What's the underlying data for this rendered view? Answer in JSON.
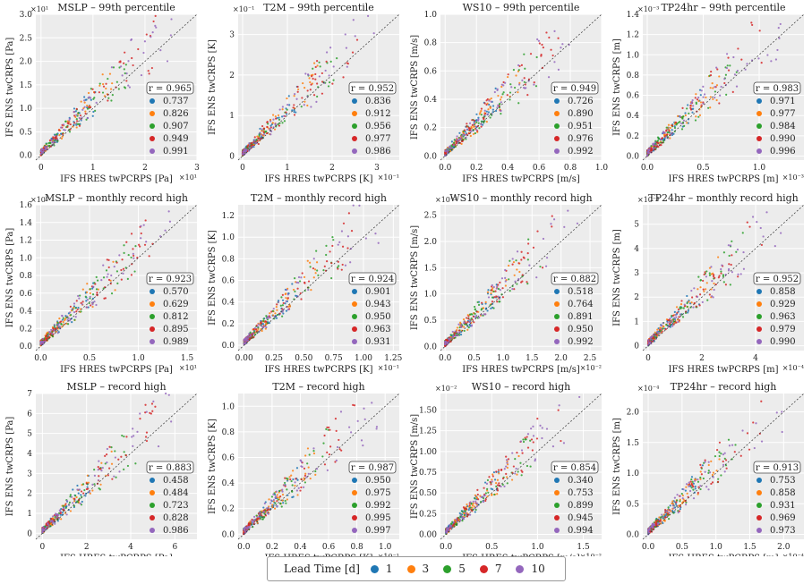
{
  "colors": {
    "lead": [
      "#1f77b4",
      "#ff7f0e",
      "#2ca02c",
      "#d62728",
      "#9467bd"
    ],
    "plot_bg": "#ececec",
    "grid": "#ffffff",
    "diagonal": "#333333"
  },
  "legend": {
    "title": "Lead Time [d]",
    "items": [
      "1",
      "3",
      "5",
      "7",
      "10"
    ]
  },
  "chart_data": [
    {
      "type": "scatter",
      "title": "MSLP – 99th percentile",
      "xlabel": "IFS HRES twPCRPS [Pa]",
      "ylabel": "IFS ENS twCRPS [Pa]",
      "x_exp": "×10¹",
      "y_exp": "×10¹",
      "xlim": [
        -0.1,
        3
      ],
      "ylim": [
        -0.1,
        3
      ],
      "xticks": [
        "0",
        "1",
        "2",
        "3"
      ],
      "yticks": [
        "0.0",
        "0.5",
        "1.0",
        "1.5",
        "2.0",
        "2.5",
        "3.0"
      ],
      "xtick_vals": [
        0,
        1,
        2,
        3
      ],
      "ytick_vals": [
        0,
        0.5,
        1,
        1.5,
        2,
        2.5,
        3
      ],
      "r": "0.965",
      "r_series": [
        "0.737",
        "0.826",
        "0.907",
        "0.949",
        "0.991"
      ]
    },
    {
      "type": "scatter",
      "title": "T2M – 99th percentile",
      "xlabel": "IFS HRES twPCRPS [K]",
      "ylabel": "IFS ENS twCRPS [K]",
      "x_exp": "×10⁻¹",
      "y_exp": "×10⁻¹",
      "xlim": [
        -0.1,
        3.5
      ],
      "ylim": [
        -0.1,
        3.5
      ],
      "xticks": [
        "0",
        "1",
        "2",
        "3"
      ],
      "yticks": [
        "0",
        "1",
        "2",
        "3"
      ],
      "xtick_vals": [
        0,
        1,
        2,
        3
      ],
      "ytick_vals": [
        0,
        1,
        2,
        3
      ],
      "r": "0.952",
      "r_series": [
        "0.836",
        "0.912",
        "0.956",
        "0.977",
        "0.986"
      ]
    },
    {
      "type": "scatter",
      "title": "WS10 – 99th percentile",
      "xlabel": "IFS HRES twPCRPS [m/s]",
      "ylabel": "IFS ENS twCRPS [m/s]",
      "x_exp": "",
      "y_exp": "",
      "xlim": [
        -0.03,
        1
      ],
      "ylim": [
        -0.03,
        1
      ],
      "xticks": [
        "0.0",
        "0.2",
        "0.4",
        "0.6",
        "0.8",
        "1.0"
      ],
      "yticks": [
        "0.0",
        "0.2",
        "0.4",
        "0.6",
        "0.8",
        "1.0"
      ],
      "xtick_vals": [
        0,
        0.2,
        0.4,
        0.6,
        0.8,
        1
      ],
      "ytick_vals": [
        0,
        0.2,
        0.4,
        0.6,
        0.8,
        1
      ],
      "r": "0.949",
      "r_series": [
        "0.726",
        "0.890",
        "0.951",
        "0.976",
        "0.992"
      ]
    },
    {
      "type": "scatter",
      "title": "TP24hr – 99th percentile",
      "xlabel": "IFS HRES twPCRPS [m]",
      "ylabel": "IFS ENS twCRPS [m]",
      "x_exp": "×10⁻³",
      "y_exp": "×10⁻³",
      "xlim": [
        -0.04,
        1.4
      ],
      "ylim": [
        -0.04,
        1.4
      ],
      "xticks": [
        "0.0",
        "0.5",
        "1.0"
      ],
      "yticks": [
        "0.0",
        "0.2",
        "0.4",
        "0.6",
        "0.8",
        "1.0",
        "1.2",
        "1.4"
      ],
      "xtick_vals": [
        0,
        0.5,
        1
      ],
      "ytick_vals": [
        0,
        0.2,
        0.4,
        0.6,
        0.8,
        1,
        1.2,
        1.4
      ],
      "r": "0.983",
      "r_series": [
        "0.971",
        "0.977",
        "0.984",
        "0.990",
        "0.996"
      ]
    },
    {
      "type": "scatter",
      "title": "MSLP – monthly record high",
      "xlabel": "IFS HRES twPCRPS [Pa]",
      "ylabel": "IFS ENS twCRPS [Pa]",
      "x_exp": "×10¹",
      "y_exp": "×10¹",
      "xlim": [
        -0.05,
        1.6
      ],
      "ylim": [
        -0.05,
        1.6
      ],
      "xticks": [
        "0.0",
        "0.5",
        "1.0",
        "1.5"
      ],
      "yticks": [
        "0.0",
        "0.2",
        "0.4",
        "0.6",
        "0.8",
        "1.0",
        "1.2",
        "1.4",
        "1.6"
      ],
      "xtick_vals": [
        0,
        0.5,
        1,
        1.5
      ],
      "ytick_vals": [
        0,
        0.2,
        0.4,
        0.6,
        0.8,
        1,
        1.2,
        1.4,
        1.6
      ],
      "r": "0.923",
      "r_series": [
        "0.570",
        "0.629",
        "0.812",
        "0.895",
        "0.989"
      ]
    },
    {
      "type": "scatter",
      "title": "T2M – monthly record high",
      "xlabel": "IFS HRES twPCRPS [K]",
      "ylabel": "IFS ENS twCRPS [K]",
      "x_exp": "×10⁻¹",
      "y_exp": "",
      "xlim": [
        -0.05,
        1.3
      ],
      "ylim": [
        -0.05,
        1.3
      ],
      "xticks": [
        "0.00",
        "0.25",
        "0.50",
        "0.75",
        "1.00",
        "1.25"
      ],
      "yticks": [
        "0.0",
        "0.2",
        "0.4",
        "0.6",
        "0.8",
        "1.0",
        "1.2"
      ],
      "xtick_vals": [
        0,
        0.25,
        0.5,
        0.75,
        1,
        1.25
      ],
      "ytick_vals": [
        0,
        0.2,
        0.4,
        0.6,
        0.8,
        1,
        1.2
      ],
      "r": "0.924",
      "r_series": [
        "0.901",
        "0.943",
        "0.950",
        "0.963",
        "0.931"
      ]
    },
    {
      "type": "scatter",
      "title": "WS10 – monthly record high",
      "xlabel": "IFS HRES twPCRPS [m/s]",
      "ylabel": "IFS ENS twCRPS [m/s]",
      "x_exp": "×10⁻²",
      "y_exp": "×10⁻²",
      "xlim": [
        -0.08,
        2.7
      ],
      "ylim": [
        -0.08,
        2.7
      ],
      "xticks": [
        "0.0",
        "0.5",
        "1.0",
        "1.5",
        "2.0",
        "2.5"
      ],
      "yticks": [
        "0.0",
        "0.5",
        "1.0",
        "1.5",
        "2.0",
        "2.5"
      ],
      "xtick_vals": [
        0,
        0.5,
        1,
        1.5,
        2,
        2.5
      ],
      "ytick_vals": [
        0,
        0.5,
        1,
        1.5,
        2,
        2.5
      ],
      "r": "0.882",
      "r_series": [
        "0.518",
        "0.764",
        "0.891",
        "0.950",
        "0.992"
      ]
    },
    {
      "type": "scatter",
      "title": "TP24hr – monthly record high",
      "xlabel": "IFS HRES twPCRPS [m]",
      "ylabel": "IFS ENS twCRPS [m]",
      "x_exp": "×10⁻⁴",
      "y_exp": "×10⁻⁴",
      "xlim": [
        -0.2,
        5.8
      ],
      "ylim": [
        -0.2,
        5.8
      ],
      "xticks": [
        "0",
        "2",
        "4"
      ],
      "yticks": [
        "0",
        "1",
        "2",
        "3",
        "4",
        "5"
      ],
      "xtick_vals": [
        0,
        2,
        4
      ],
      "ytick_vals": [
        0,
        1,
        2,
        3,
        4,
        5
      ],
      "r": "0.952",
      "r_series": [
        "0.858",
        "0.929",
        "0.963",
        "0.979",
        "0.990"
      ]
    },
    {
      "type": "scatter",
      "title": "MSLP – record high",
      "xlabel": "IFS HRES twPCRPS [Pa]",
      "ylabel": "IFS ENS twCRPS [Pa]",
      "x_exp": "",
      "y_exp": "",
      "xlim": [
        -0.3,
        7
      ],
      "ylim": [
        -0.3,
        7
      ],
      "xticks": [
        "0",
        "2",
        "4",
        "6"
      ],
      "yticks": [
        "0",
        "1",
        "2",
        "3",
        "4",
        "5",
        "6",
        "7"
      ],
      "xtick_vals": [
        0,
        2,
        4,
        6
      ],
      "ytick_vals": [
        0,
        1,
        2,
        3,
        4,
        5,
        6,
        7
      ],
      "r": "0.883",
      "r_series": [
        "0.458",
        "0.484",
        "0.723",
        "0.828",
        "0.986"
      ]
    },
    {
      "type": "scatter",
      "title": "T2M – record high",
      "xlabel": "IFS HRES twPCRPS [K]",
      "ylabel": "IFS ENS twCRPS [K]",
      "x_exp": "×10⁻¹",
      "y_exp": "",
      "xlim": [
        -0.04,
        1.1
      ],
      "ylim": [
        -0.04,
        1.1
      ],
      "xticks": [
        "0.0",
        "0.2",
        "0.4",
        "0.6",
        "0.8",
        "1.0"
      ],
      "yticks": [
        "0.0",
        "0.2",
        "0.4",
        "0.6",
        "0.8",
        "1.0"
      ],
      "xtick_vals": [
        0,
        0.2,
        0.4,
        0.6,
        0.8,
        1
      ],
      "ytick_vals": [
        0,
        0.2,
        0.4,
        0.6,
        0.8,
        1
      ],
      "r": "0.987",
      "r_series": [
        "0.950",
        "0.975",
        "0.992",
        "0.995",
        "0.997"
      ]
    },
    {
      "type": "scatter",
      "title": "WS10 – record high",
      "xlabel": "IFS HRES twPCRPS [m/s]",
      "ylabel": "IFS ENS twCRPS [m/s]",
      "x_exp": "×10⁻²",
      "y_exp": "×10⁻²",
      "xlim": [
        -0.06,
        1.7
      ],
      "ylim": [
        -0.06,
        1.7
      ],
      "xticks": [
        "0.0",
        "0.5",
        "1.0",
        "1.5"
      ],
      "yticks": [
        "0.00",
        "0.25",
        "0.50",
        "0.75",
        "1.00",
        "1.25",
        "1.50"
      ],
      "xtick_vals": [
        0,
        0.5,
        1,
        1.5
      ],
      "ytick_vals": [
        0,
        0.25,
        0.5,
        0.75,
        1,
        1.25,
        1.5
      ],
      "r": "0.854",
      "r_series": [
        "0.340",
        "0.753",
        "0.899",
        "0.945",
        "0.994"
      ]
    },
    {
      "type": "scatter",
      "title": "TP24hr – record high",
      "xlabel": "IFS HRES twPCRPS [m]",
      "ylabel": "IFS ENS twCRPS [m]",
      "x_exp": "×10⁻⁴",
      "y_exp": "×10⁻⁴",
      "xlim": [
        -0.08,
        2.3
      ],
      "ylim": [
        -0.08,
        2.3
      ],
      "xticks": [
        "0.0",
        "0.5",
        "1.0",
        "1.5",
        "2.0"
      ],
      "yticks": [
        "0.0",
        "0.5",
        "1.0",
        "1.5",
        "2.0"
      ],
      "xtick_vals": [
        0,
        0.5,
        1,
        1.5,
        2
      ],
      "ytick_vals": [
        0,
        0.5,
        1,
        1.5,
        2
      ],
      "r": "0.913",
      "r_series": [
        "0.753",
        "0.858",
        "0.931",
        "0.969",
        "0.973"
      ]
    }
  ]
}
